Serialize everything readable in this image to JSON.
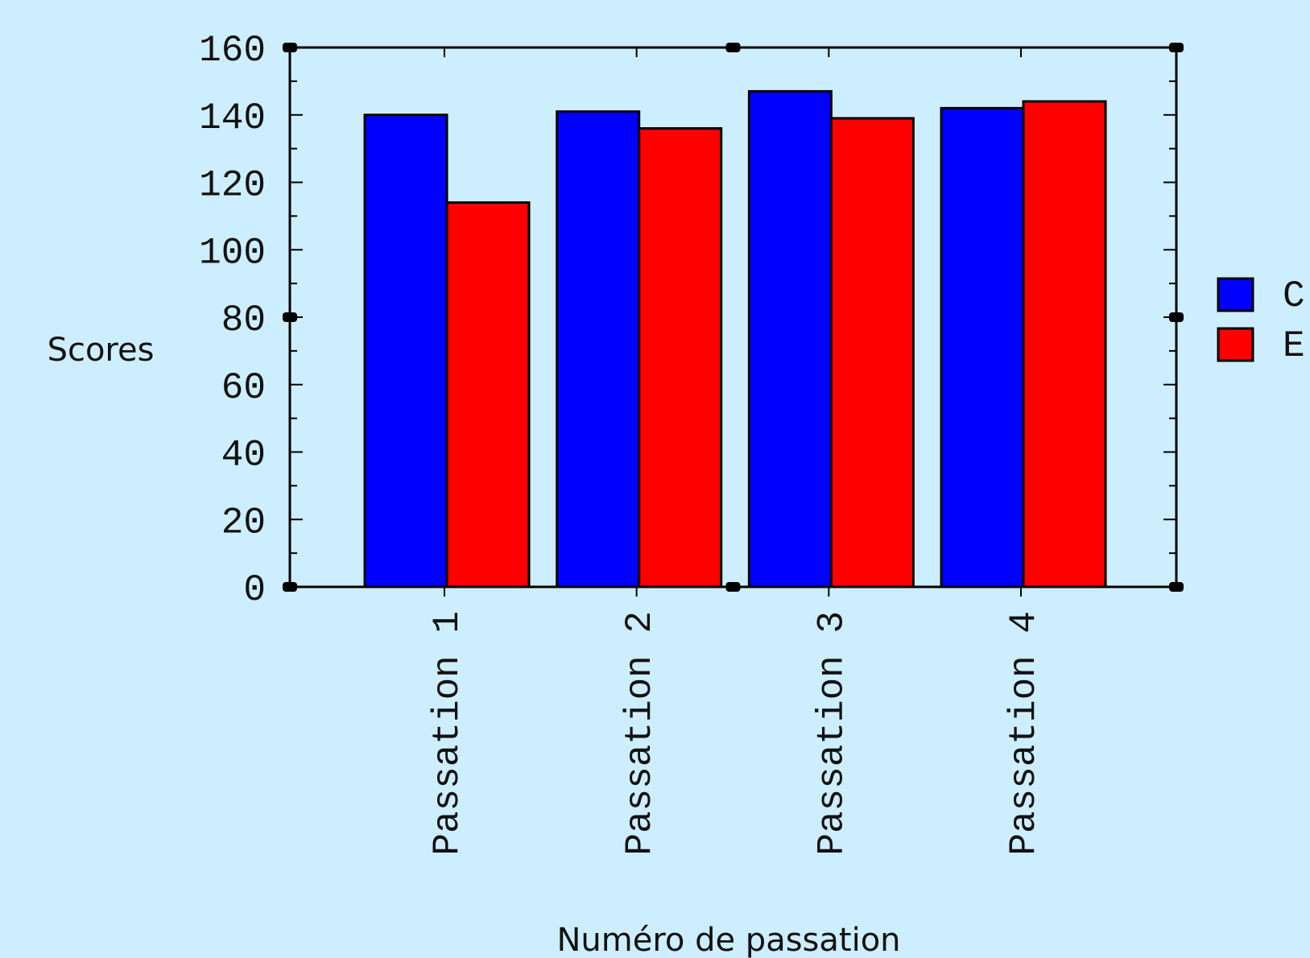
{
  "chart_data": {
    "type": "bar",
    "y_label": "Scores",
    "x_label": "Numéro de passation",
    "categories": [
      "Passation 1",
      "Passation 2",
      "Passation 3",
      "Passation 4"
    ],
    "series": [
      {
        "name": "C",
        "color": "#0000ff",
        "values": [
          140,
          141,
          147,
          142
        ]
      },
      {
        "name": "E",
        "color": "#ff0000",
        "values": [
          114,
          136,
          139,
          144
        ]
      }
    ],
    "ylim": [
      0,
      160
    ],
    "yticks": [
      0,
      20,
      40,
      60,
      80,
      100,
      120,
      140,
      160
    ]
  }
}
